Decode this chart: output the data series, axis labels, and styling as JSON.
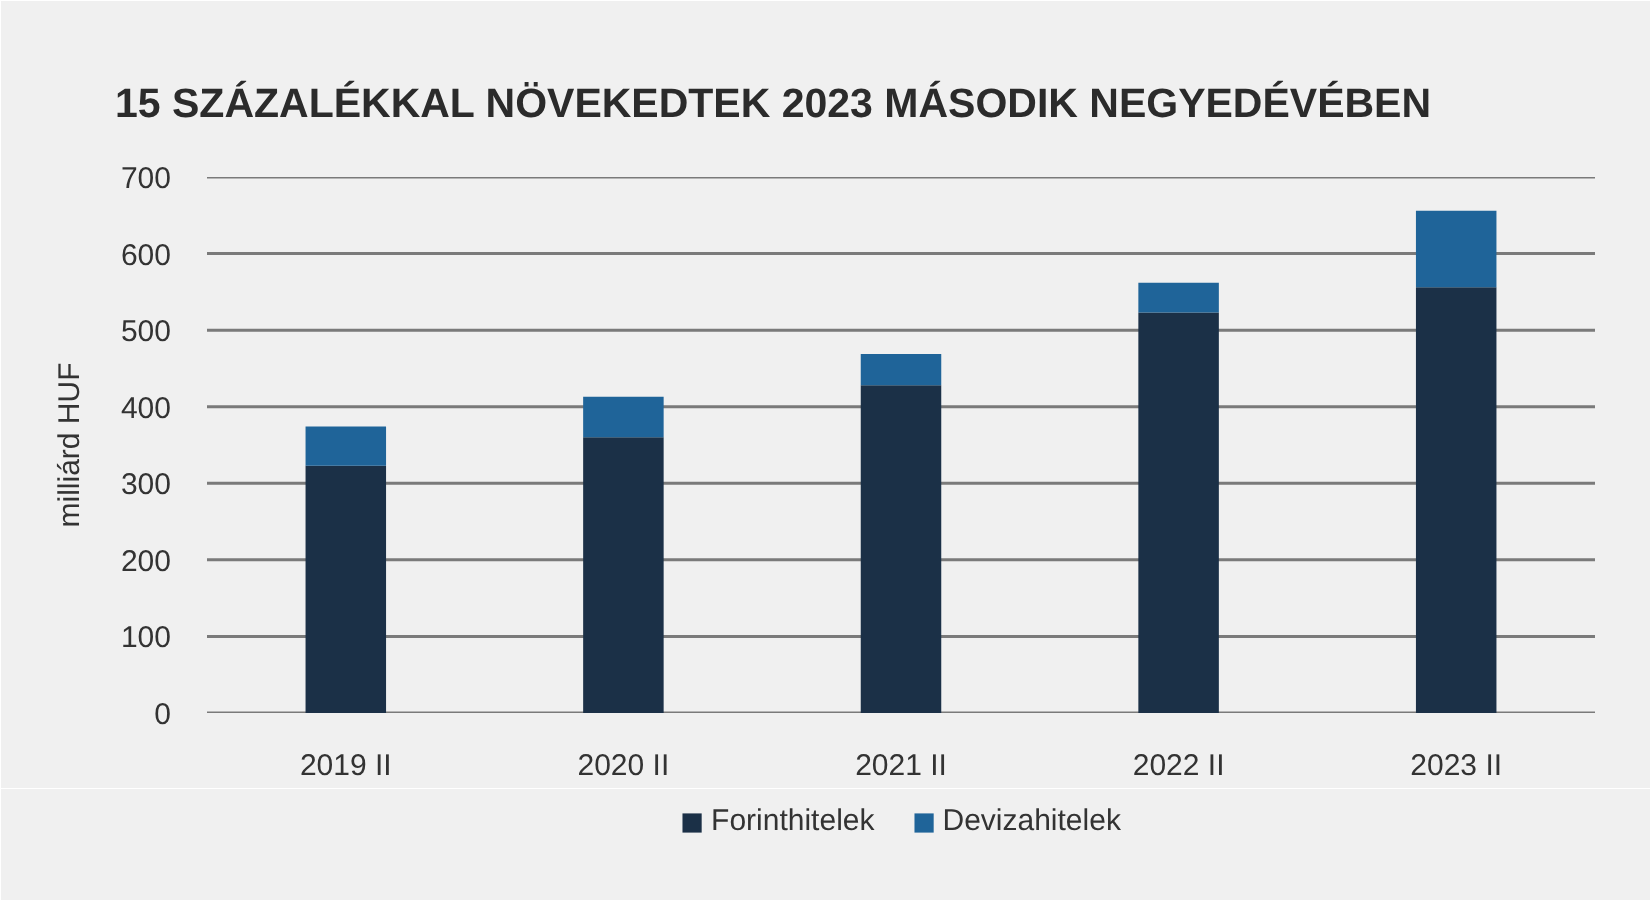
{
  "chart_data": {
    "type": "bar",
    "title": "15 SZÁZALÉKKAL NÖVEKEDTEK 2023 MÁSODIK NEGYEDÉVÉBEN",
    "ylabel": "milliárd HUF",
    "categories": [
      "2019 II",
      "2020 II",
      "2021 II",
      "2022 II",
      "2023 II"
    ],
    "stacked": true,
    "series": [
      {
        "name": "Forinthitelek",
        "color": "#1b3047",
        "values": [
          323,
          360,
          428,
          523,
          556
        ]
      },
      {
        "name": "Devizahitelek",
        "color": "#1f6499",
        "values": [
          51,
          53,
          41,
          39,
          100
        ]
      }
    ],
    "ylim": [
      0,
      700
    ],
    "yticks": [
      0,
      100,
      200,
      300,
      400,
      500,
      600,
      700
    ],
    "grid": "y",
    "legend": "bottom"
  }
}
